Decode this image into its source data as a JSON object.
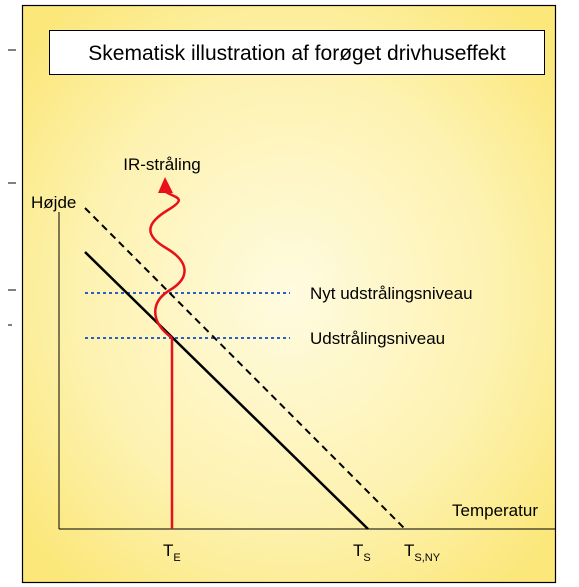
{
  "title": "Skematisk illustration af forøget drivhuseffekt",
  "labels": {
    "radiation": "IR-stråling",
    "height_axis": "Højde",
    "new_level": "Nyt udstrålingsniveau",
    "level": "Udstrålingsniveau",
    "temperature_axis": "Temperatur"
  },
  "temperature_marks": [
    {
      "symbol": "T",
      "subscript": "E"
    },
    {
      "symbol": "T",
      "subscript": "S"
    },
    {
      "symbol": "T",
      "subscript": "S,NY"
    }
  ]
}
